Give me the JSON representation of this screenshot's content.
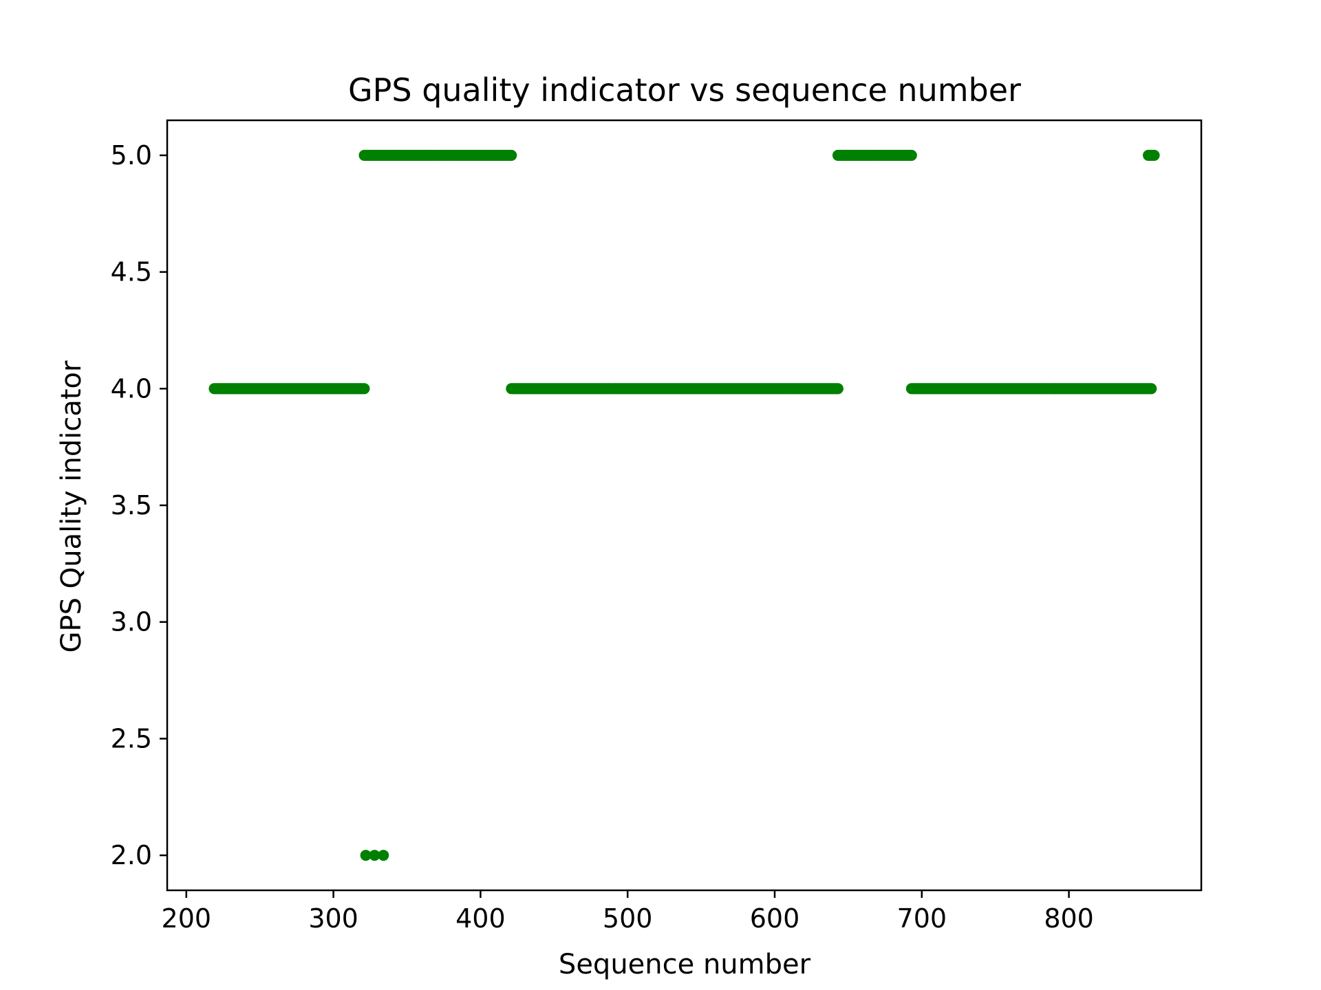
{
  "chart_data": {
    "type": "scatter",
    "title": "GPS quality indicator vs sequence number",
    "xlabel": "Sequence number",
    "ylabel": "GPS Quality indicator",
    "xlim": [
      187,
      890
    ],
    "ylim": [
      1.85,
      5.15
    ],
    "xticks": [
      200,
      300,
      400,
      500,
      600,
      700,
      800
    ],
    "yticks": [
      2.0,
      2.5,
      3.0,
      3.5,
      4.0,
      4.5,
      5.0
    ],
    "xtick_labels": [
      "200",
      "300",
      "400",
      "500",
      "600",
      "700",
      "800"
    ],
    "ytick_labels": [
      "2.0",
      "2.5",
      "3.0",
      "3.5",
      "4.0",
      "4.5",
      "5.0"
    ],
    "grid": false,
    "marker_color": "#008000",
    "series": [
      {
        "name": "GPS Quality indicator",
        "runs": [
          {
            "x_start": 219,
            "x_end": 321,
            "y": 4.0
          },
          {
            "x_start": 321,
            "x_end": 421,
            "y": 5.0
          },
          {
            "x_start": 322,
            "x_end": 322,
            "y": 2.0
          },
          {
            "x_start": 328,
            "x_end": 328,
            "y": 2.0
          },
          {
            "x_start": 334,
            "x_end": 334,
            "y": 2.0
          },
          {
            "x_start": 421,
            "x_end": 643,
            "y": 4.0
          },
          {
            "x_start": 643,
            "x_end": 693,
            "y": 5.0
          },
          {
            "x_start": 693,
            "x_end": 856,
            "y": 4.0
          },
          {
            "x_start": 854,
            "x_end": 858,
            "y": 5.0
          }
        ]
      }
    ]
  }
}
